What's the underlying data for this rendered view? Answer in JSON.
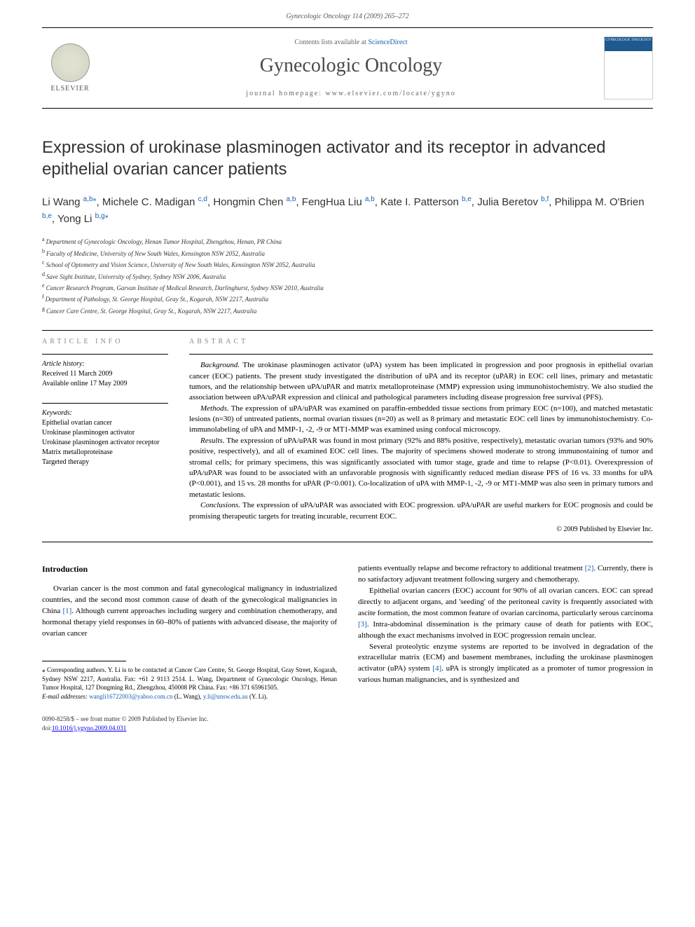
{
  "header": {
    "citation": "Gynecologic Oncology 114 (2009) 265–272"
  },
  "banner": {
    "elsevier": "ELSEVIER",
    "contentsPrefix": "Contents lists available at ",
    "contentsLink": "ScienceDirect",
    "journalName": "Gynecologic Oncology",
    "homepagePrefix": "journal homepage: ",
    "homepage": "www.elsevier.com/locate/ygyno",
    "coverLabel": "GYNECOLOGIC ONCOLOGY"
  },
  "article": {
    "title": "Expression of urokinase plasminogen activator and its receptor in advanced epithelial ovarian cancer patients",
    "authors": [
      {
        "name": "Li Wang",
        "aff": "a,b,",
        "star": true
      },
      {
        "name": "Michele C. Madigan",
        "aff": "c,d"
      },
      {
        "name": "Hongmin Chen",
        "aff": "a,b"
      },
      {
        "name": "FengHua Liu",
        "aff": "a,b"
      },
      {
        "name": "Kate I. Patterson",
        "aff": "b,e"
      },
      {
        "name": "Julia Beretov",
        "aff": "b,f"
      },
      {
        "name": "Philippa M. O'Brien",
        "aff": "b,e"
      },
      {
        "name": "Yong Li",
        "aff": "b,g,",
        "star": true
      }
    ],
    "affiliations": [
      {
        "sup": "a",
        "text": "Department of Gynecologic Oncology, Henan Tumor Hospital, Zhengzhou, Henan, PR China"
      },
      {
        "sup": "b",
        "text": "Faculty of Medicine, University of New South Wales, Kensington NSW 2052, Australia"
      },
      {
        "sup": "c",
        "text": "School of Optometry and Vision Science, University of New South Wales, Kensington NSW 2052, Australia"
      },
      {
        "sup": "d",
        "text": "Save Sight Institute, University of Sydney, Sydney NSW 2006, Australia"
      },
      {
        "sup": "e",
        "text": "Cancer Research Program, Garvan Institute of Medical Research, Darlinghurst, Sydney NSW 2010, Australia"
      },
      {
        "sup": "f",
        "text": "Department of Pathology, St. George Hospital, Gray St., Kogarah, NSW 2217, Australia"
      },
      {
        "sup": "g",
        "text": "Cancer Care Centre, St. George Hospital, Gray St., Kogarah, NSW 2217, Australia"
      }
    ]
  },
  "articleInfo": {
    "heading": "ARTICLE INFO",
    "historyLabel": "Article history:",
    "received": "Received 11 March 2009",
    "online": "Available online 17 May 2009",
    "keywordsLabel": "Keywords:",
    "keywords": [
      "Epithelial ovarian cancer",
      "Urokinase plasminogen activator",
      "Urokinase plasminogen activator receptor",
      "Matrix metalloproteinase",
      "Targeted therapy"
    ]
  },
  "abstract": {
    "heading": "ABSTRACT",
    "background": {
      "label": "Background.",
      "text": " The urokinase plasminogen activator (uPA) system has been implicated in progression and poor prognosis in epithelial ovarian cancer (EOC) patients. The present study investigated the distribution of uPA and its receptor (uPAR) in EOC cell lines, primary and metastatic tumors, and the relationship between uPA/uPAR and matrix metalloproteinase (MMP) expression using immunohistochemistry. We also studied the association between uPA/uPAR expression and clinical and pathological parameters including disease progression free survival (PFS)."
    },
    "methods": {
      "label": "Methods.",
      "text": " The expression of uPA/uPAR was examined on paraffin-embedded tissue sections from primary EOC (n=100), and matched metastatic lesions (n=30) of untreated patients, normal ovarian tissues (n=20) as well as 8 primary and metastatic EOC cell lines by immunohistochemistry. Co-immunolabeling of uPA and MMP-1, -2, -9 or MT1-MMP was examined using confocal microscopy."
    },
    "results": {
      "label": "Results.",
      "text": " The expression of uPA/uPAR was found in most primary (92% and 88% positive, respectively), metastatic ovarian tumors (93% and 90% positive, respectively), and all of examined EOC cell lines. The majority of specimens showed moderate to strong immunostaining of tumor and stromal cells; for primary specimens, this was significantly associated with tumor stage, grade and time to relapse (P<0.01). Overexpression of uPA/uPAR was found to be associated with an unfavorable prognosis with significantly reduced median disease PFS of 16 vs. 33 months for uPA (P<0.001), and 15 vs. 28 months for uPAR (P<0.001). Co-localization of uPA with MMP-1, -2, -9 or MT1-MMP was also seen in primary tumors and metastatic lesions."
    },
    "conclusions": {
      "label": "Conclusions.",
      "text": " The expression of uPA/uPAR was associated with EOC progression. uPA/uPAR are useful markers for EOC prognosis and could be promising therapeutic targets for treating incurable, recurrent EOC."
    },
    "copyright": "© 2009 Published by Elsevier Inc."
  },
  "body": {
    "introHeading": "Introduction",
    "leftCol": {
      "p1a": "Ovarian cancer is the most common and fatal gynecological malignancy in industrialized countries, and the second most common cause of death of the gynecological malignancies in China ",
      "ref1": "[1]",
      "p1b": ". Although current approaches including surgery and combination chemotherapy, and hormonal therapy yield responses in 60–80% of patients with advanced disease, the majority of ovarian cancer"
    },
    "rightCol": {
      "p1a": "patients eventually relapse and become refractory to additional treatment ",
      "ref2": "[2]",
      "p1b": ". Currently, there is no satisfactory adjuvant treatment following surgery and chemotherapy.",
      "p2a": "Epithelial ovarian cancers (EOC) account for 90% of all ovarian cancers. EOC can spread directly to adjacent organs, and 'seeding' of the peritoneal cavity is frequently associated with ascite formation, the most common feature of ovarian carcinoma, particularly serous carcinoma ",
      "ref3": "[3]",
      "p2b": ". Intra-abdominal dissemination is the primary cause of death for patients with EOC, although the exact mechanisms involved in EOC progression remain unclear.",
      "p3a": "Several proteolytic enzyme systems are reported to be involved in degradation of the extracellular matrix (ECM) and basement membranes, including the urokinase plasminogen activator (uPA) system ",
      "ref4": "[4]",
      "p3b": ". uPA is strongly implicated as a promoter of tumor progression in various human malignancies, and is synthesized and"
    }
  },
  "footnotes": {
    "corr": "⁎ Corresponding authors. Y. Li is to be contacted at Cancer Care Centre, St. George Hospital, Gray Street, Kogarah, Sydney NSW 2217, Australia. Fax: +61 2 9113 2514. L. Wang, Department of Gynecologic Oncology, Henan Tumor Hospital, 127 Dongming Rd., Zhengzhou, 450008 PR China. Fax: +86 371 65961505.",
    "emailLabel": "E-mail addresses: ",
    "email1": "wangli16722003@yahoo.com.cn",
    "email1who": " (L. Wang), ",
    "email2": "y.li@unsw.edu.au",
    "email2who": " (Y. Li)."
  },
  "footer": {
    "issn": "0090-8258/$ – see front matter © 2009 Published by Elsevier Inc.",
    "doiLabel": "doi:",
    "doi": "10.1016/j.ygyno.2009.04.031"
  },
  "colors": {
    "link": "#1a5fb4",
    "grayHeading": "#888888",
    "coverBlue": "#1e5a8e"
  }
}
